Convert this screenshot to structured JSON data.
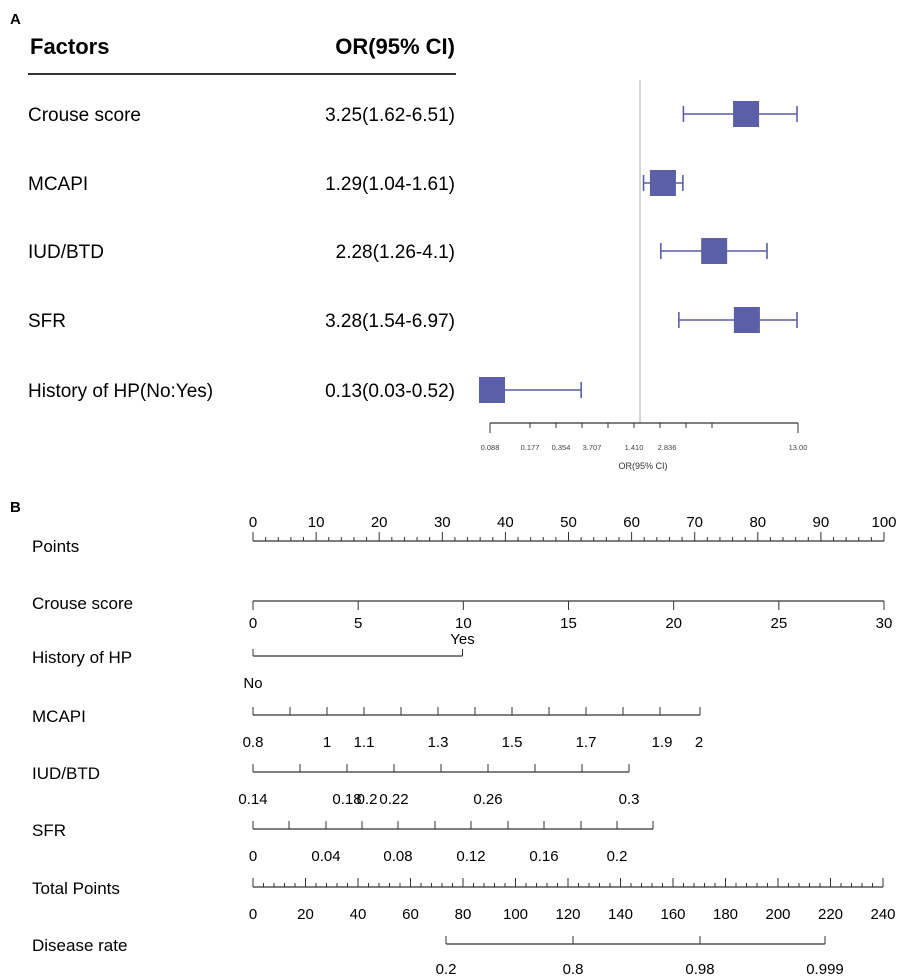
{
  "panel_a": {
    "letter": "A",
    "header_factor": "Factors",
    "header_or": "OR(95% CI)",
    "axis_label": "OR(95% CI)",
    "axis_ticks": [
      "0.088",
      "0.177",
      "0.354",
      "3.707",
      "1.410",
      "2.836",
      "13.00"
    ],
    "colors": {
      "marker": "#5a5fa8",
      "ref_line": "#aaaaaa",
      "axis": "#333333"
    }
  },
  "panel_b": {
    "letter": "B"
  },
  "chart_data": [
    {
      "type": "forest",
      "title": "",
      "xlabel": "OR(95% CI)",
      "scale": "log",
      "reference": 1,
      "rows": [
        {
          "factor": "Crouse score",
          "or_text": "3.25(1.62-6.51)",
          "or": 3.25,
          "lo": 1.62,
          "hi": 6.51
        },
        {
          "factor": "MCAPI",
          "or_text": "1.29(1.04-1.61)",
          "or": 1.29,
          "lo": 1.04,
          "hi": 1.61
        },
        {
          "factor": "IUD/BTD",
          "or_text": "2.28(1.26-4.1)",
          "or": 2.28,
          "lo": 1.26,
          "hi": 4.1
        },
        {
          "factor": "SFR",
          "or_text": "3.28(1.54-6.97)",
          "or": 3.28,
          "lo": 1.54,
          "hi": 6.97
        },
        {
          "factor": "History of HP(No:Yes)",
          "or_text": "0.13(0.03-0.52)",
          "or": 0.13,
          "lo": 0.03,
          "hi": 0.52
        }
      ]
    },
    {
      "type": "nomogram",
      "title": "",
      "axes": [
        {
          "name": "Points",
          "min": 0,
          "max": 100,
          "labels": [
            "0",
            "10",
            "20",
            "30",
            "40",
            "50",
            "60",
            "70",
            "80",
            "90",
            "100"
          ],
          "label_pos": "above"
        },
        {
          "name": "Crouse score",
          "min": 0,
          "max": 30,
          "labels": [
            "0",
            "5",
            "10",
            "15",
            "20",
            "25",
            "30"
          ],
          "label_pos": "below"
        },
        {
          "name": "History of HP",
          "categories": [
            {
              "label": "No",
              "points": 0
            },
            {
              "label": "Yes",
              "points": 33.2
            }
          ]
        },
        {
          "name": "MCAPI",
          "range": [
            0.8,
            2
          ],
          "labels": [
            "0.8",
            "1",
            "1.1",
            "1.3",
            "1.5",
            "1.7",
            "1.9",
            "2"
          ],
          "label_values": [
            0.8,
            1,
            1.1,
            1.3,
            1.5,
            1.7,
            1.9,
            2
          ],
          "label_pos": "below"
        },
        {
          "name": "IUD/BTD",
          "range": [
            0.14,
            0.3
          ],
          "labels": [
            "0.14",
            "0.18",
            "0.2",
            "0.22",
            "0.26",
            "0.3"
          ],
          "label_values": [
            0.14,
            0.18,
            0.2,
            0.22,
            0.26,
            0.3
          ],
          "label_pos": "below"
        },
        {
          "name": "SFR",
          "range": [
            0,
            0.22
          ],
          "labels": [
            "0",
            "0.04",
            "0.08",
            "0.12",
            "0.16",
            "0.2"
          ],
          "label_values": [
            0,
            0.04,
            0.08,
            0.12,
            0.16,
            0.2
          ],
          "label_pos": "below"
        },
        {
          "name": "Total Points",
          "min": 0,
          "max": 240,
          "labels": [
            "0",
            "20",
            "40",
            "60",
            "80",
            "100",
            "120",
            "140",
            "160",
            "180",
            "200",
            "220",
            "240"
          ],
          "label_pos": "below"
        },
        {
          "name": "Disease rate",
          "labels": [
            "0.2",
            "0.8",
            "0.98",
            "0.999"
          ],
          "label_values": [
            0.2,
            0.8,
            0.98,
            0.999
          ],
          "label_pos": "below"
        }
      ]
    }
  ]
}
